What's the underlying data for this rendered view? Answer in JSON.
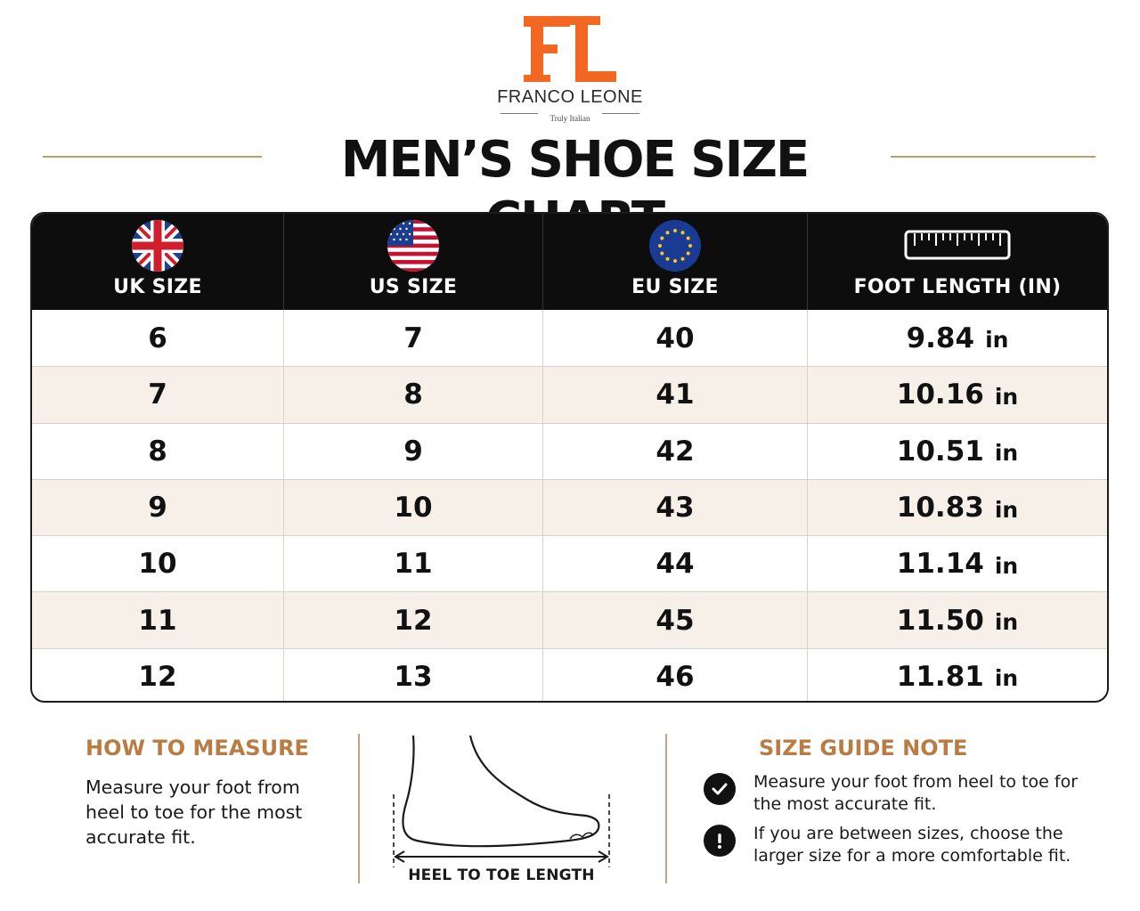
{
  "brand": {
    "monogram": "FL",
    "name": "FRANCO LEONE",
    "tagline": "Truly Italian",
    "accent_color": "#f26722"
  },
  "title": "MEN’S SHOE SIZE CHART",
  "table": {
    "headers": [
      {
        "label": "UK SIZE",
        "icon": "uk-flag-icon"
      },
      {
        "label": "US SIZE",
        "icon": "us-flag-icon"
      },
      {
        "label": "EU SIZE",
        "icon": "eu-flag-icon"
      },
      {
        "label": "FOOT LENGTH (IN)",
        "icon": "ruler-icon"
      }
    ],
    "unit": "in",
    "rows": [
      {
        "uk": "6",
        "us": "7",
        "eu": "40",
        "length": "9.84"
      },
      {
        "uk": "7",
        "us": "8",
        "eu": "41",
        "length": "10.16"
      },
      {
        "uk": "8",
        "us": "9",
        "eu": "42",
        "length": "10.51"
      },
      {
        "uk": "9",
        "us": "10",
        "eu": "43",
        "length": "10.83"
      },
      {
        "uk": "10",
        "us": "11",
        "eu": "44",
        "length": "11.14"
      },
      {
        "uk": "11",
        "us": "12",
        "eu": "45",
        "length": "11.50"
      },
      {
        "uk": "12",
        "us": "13",
        "eu": "46",
        "length": "11.81"
      }
    ]
  },
  "how_to_measure": {
    "heading": "HOW TO MEASURE",
    "text": "Measure your foot from heel to toe for the most accurate fit.",
    "diagram_label": "HEEL TO TOE LENGTH"
  },
  "size_guide": {
    "heading": "SIZE GUIDE NOTE",
    "notes": [
      {
        "icon": "check-icon",
        "text": "Measure your foot from heel to toe for the most accurate fit."
      },
      {
        "icon": "exclamation-icon",
        "text": "If you are between sizes, choose the larger size for a more comfortable fit."
      }
    ]
  },
  "colors": {
    "header_bg": "#0d0d0d",
    "alt_row": "#f7f0e8",
    "section_heading": "#b97d43",
    "divider": "#c9a27e"
  }
}
